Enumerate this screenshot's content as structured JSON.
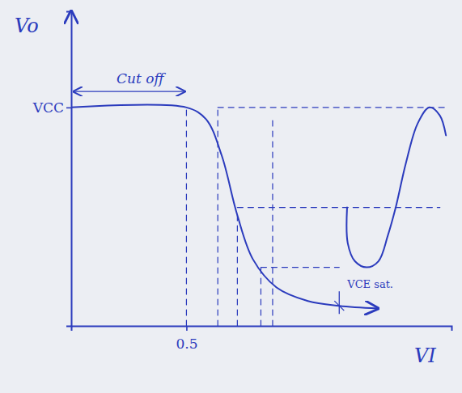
{
  "chart_data": {
    "type": "line",
    "x_label": "VI",
    "y_label": "Vo",
    "xlim": [
      0,
      1.65
    ],
    "ylim": [
      0,
      7.2
    ],
    "xticks": [
      0.5
    ],
    "yticks": [
      {
        "value": 5,
        "label": "VCC"
      }
    ],
    "grid": false,
    "series": [
      {
        "color": "#2b3bbd",
        "line_style": "solid",
        "marker": "arrow",
        "x": [
          0,
          0.5,
          0.585,
          0.653,
          0.721,
          0.789,
          0.891,
          1.027,
          1.163,
          1.33
        ],
        "values": [
          5,
          5,
          4.73,
          3.9,
          2.53,
          1.52,
          0.88,
          0.57,
          0.46,
          0.4
        ]
      },
      {
        "color": "#2b3bbd",
        "line_style": "solid",
        "x": [
          1.197,
          1.2,
          1.231,
          1.282,
          1.333,
          1.374,
          1.408,
          1.452,
          1.503,
          1.554,
          1.599,
          1.626
        ],
        "values": [
          2.71,
          1.89,
          1.48,
          1.34,
          1.48,
          2.07,
          2.71,
          3.72,
          4.63,
          5,
          4.82,
          4.36
        ]
      },
      {
        "color": "#2b3bbd",
        "line_style": "dashed",
        "x": [
          0.636,
          1.62
        ],
        "values": [
          5,
          5
        ]
      },
      {
        "color": "#2b3bbd",
        "line_style": "dashed",
        "x": [
          0.721,
          1.6
        ],
        "values": [
          2.71,
          2.71
        ]
      },
      {
        "color": "#2b3bbd",
        "line_style": "dashed",
        "x": [
          0.823,
          1.163
        ],
        "values": [
          1.34,
          1.34
        ]
      },
      {
        "color": "#2b3bbd",
        "line_style": "dashed",
        "x": [
          0.5,
          0.5
        ],
        "values": [
          0,
          5
        ]
      },
      {
        "color": "#2b3bbd",
        "line_style": "dashed",
        "x": [
          0.636,
          0.636
        ],
        "values": [
          0,
          5
        ]
      },
      {
        "color": "#2b3bbd",
        "line_style": "dashed",
        "x": [
          0.721,
          0.721
        ],
        "values": [
          0,
          2.53
        ]
      },
      {
        "color": "#2b3bbd",
        "line_style": "dashed",
        "x": [
          0.823,
          0.823
        ],
        "values": [
          0,
          1.34
        ]
      },
      {
        "color": "#2b3bbd",
        "line_style": "dashed",
        "x": [
          0.874,
          0.874
        ],
        "values": [
          0,
          4.7
        ]
      }
    ],
    "annotations": [
      {
        "text": "Cut off",
        "x": 0.25,
        "y": 5.55,
        "span": [
          0,
          0.5
        ]
      },
      {
        "text": "VCE sat.",
        "x": 1.163,
        "y": 0.46
      }
    ]
  }
}
